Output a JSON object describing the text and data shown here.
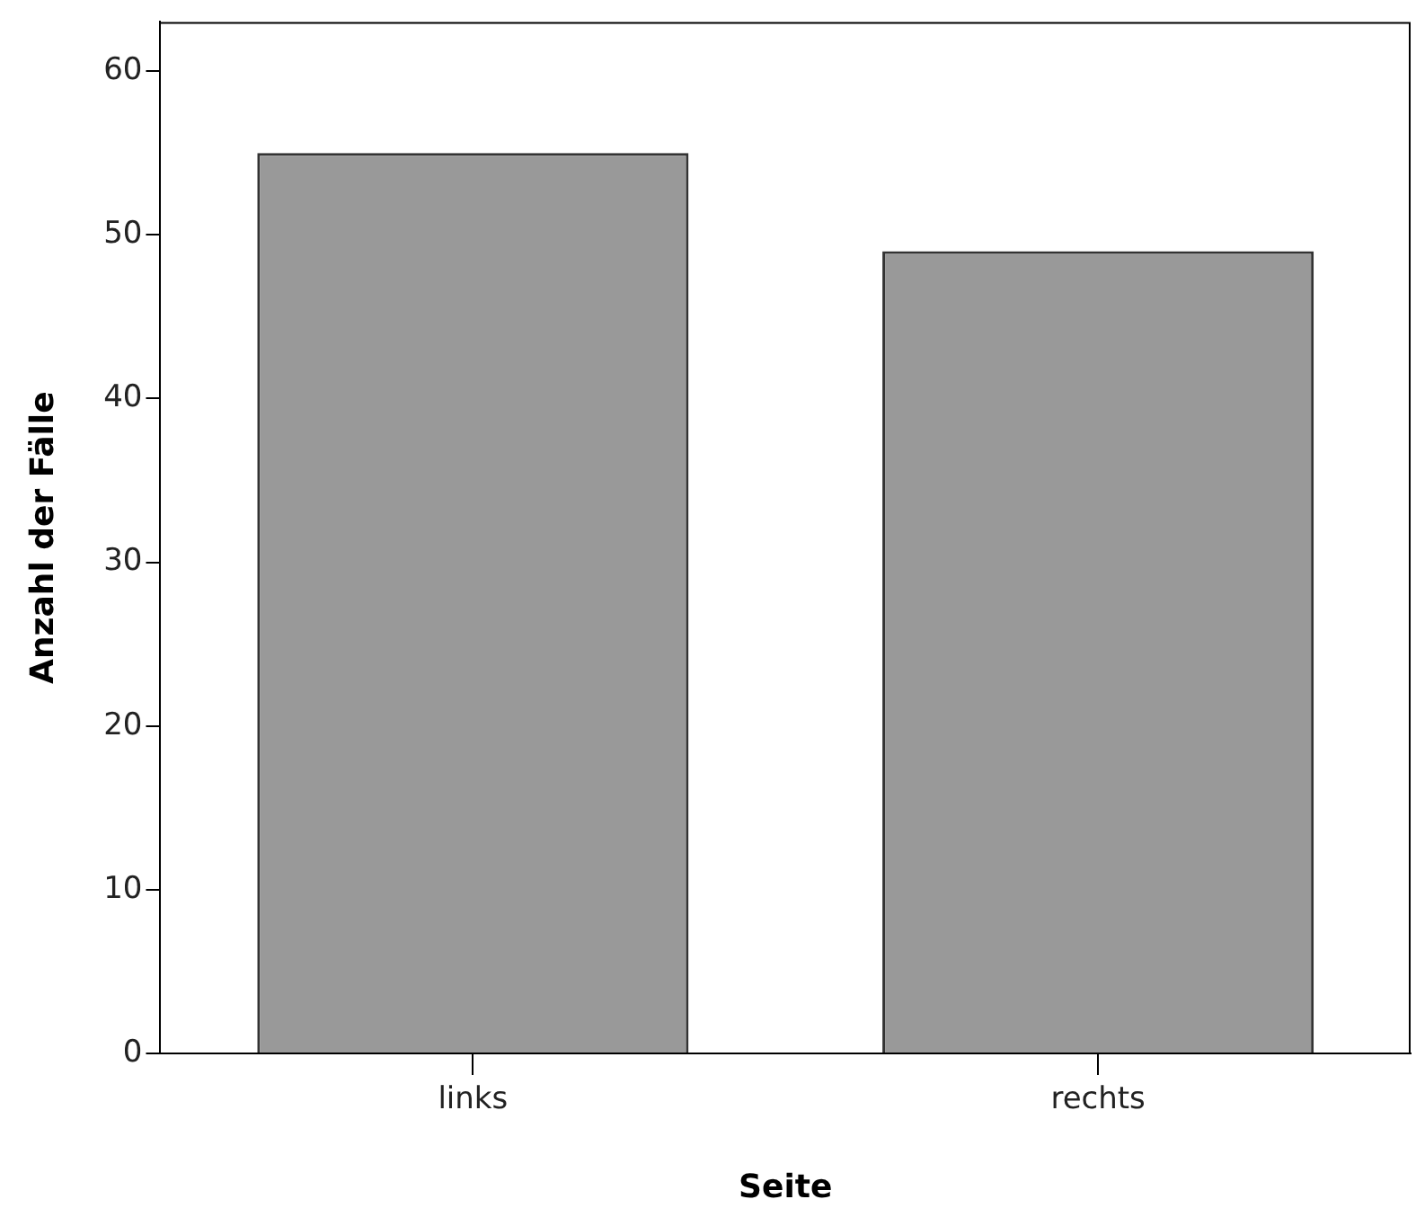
{
  "chart_data": {
    "type": "bar",
    "xlabel": "Seite",
    "ylabel": "Anzahl der Fälle",
    "categories": [
      "links",
      "rechts"
    ],
    "values": [
      55,
      49
    ],
    "color": "#999999",
    "ylim": [
      0,
      63
    ],
    "yticks": [
      0,
      10,
      20,
      30,
      40,
      50,
      60
    ],
    "grid": false,
    "legend": false
  }
}
